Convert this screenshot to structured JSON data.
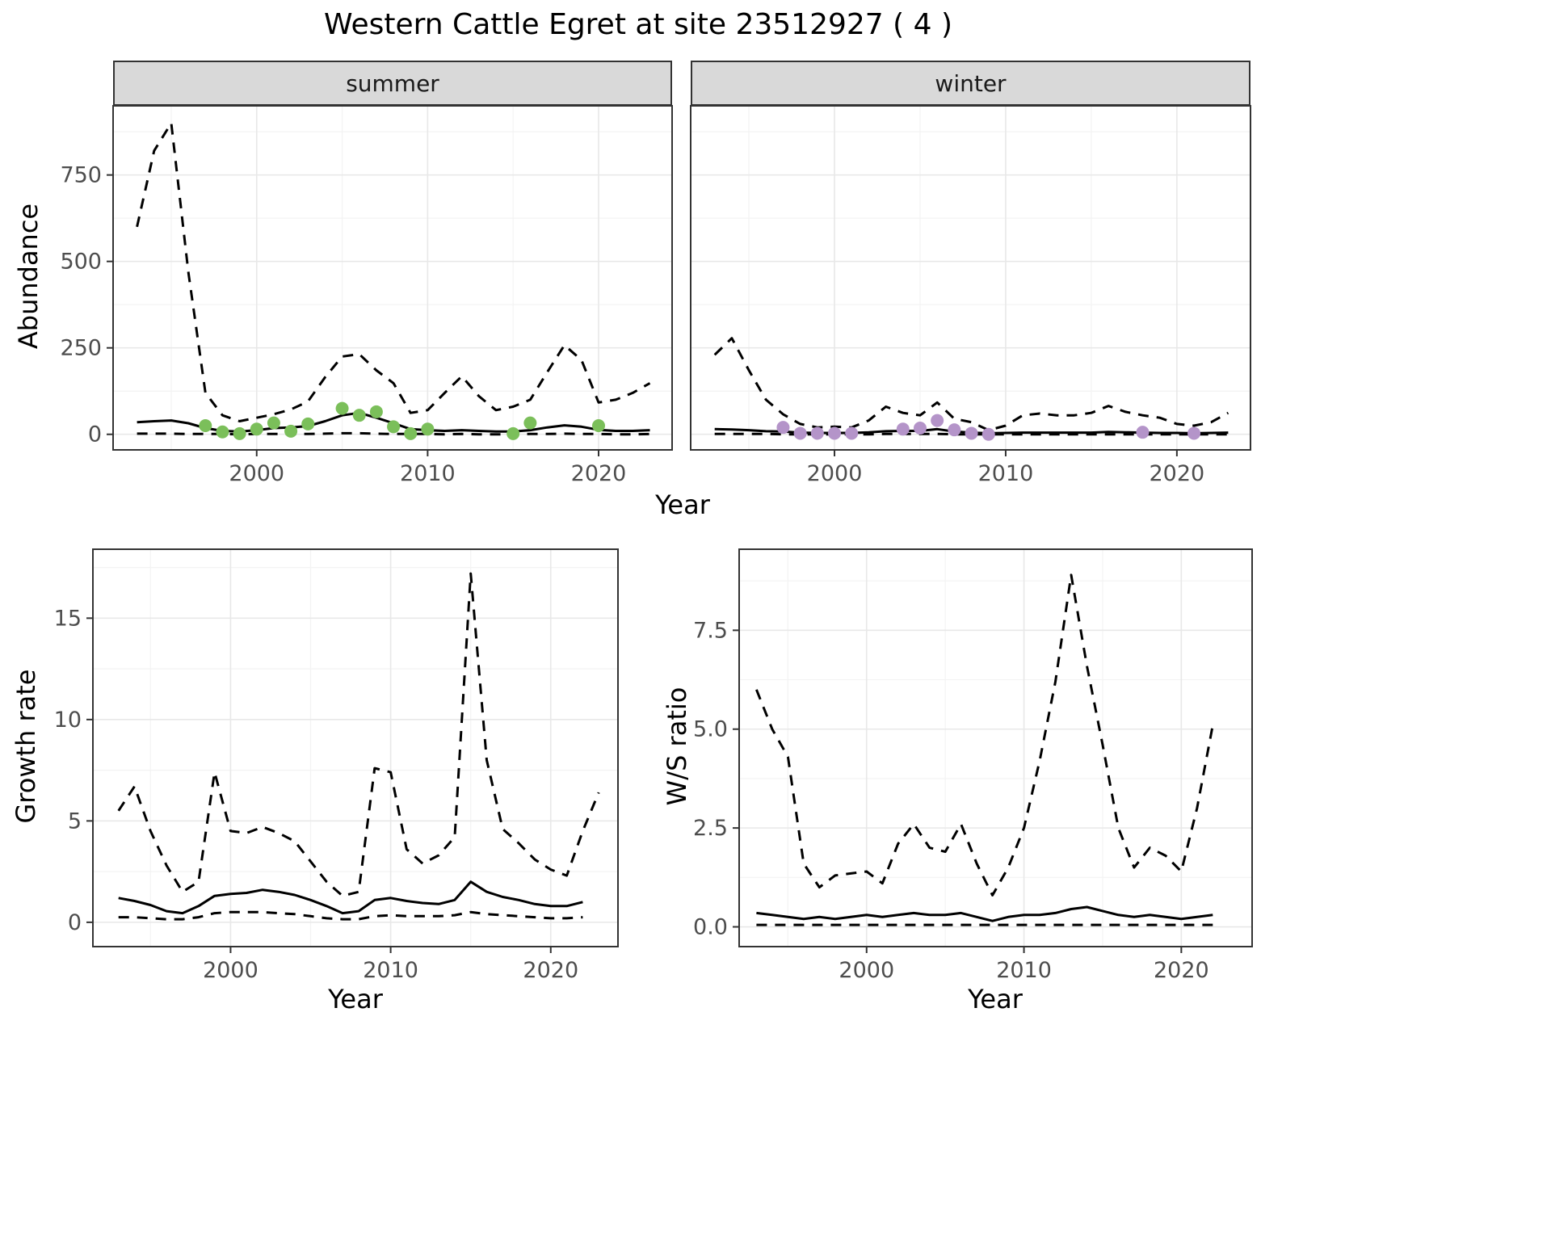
{
  "title": "Western Cattle Egret at site 23512927 ( 4 )",
  "theme": {
    "background": "#ffffff",
    "panel_border": "#333333",
    "strip_bg": "#d9d9d9",
    "grid_major": "#e8e8e8",
    "grid_minor": "#f3f3f3",
    "tick_color": "#333333",
    "tick_label_color": "#4d4d4d",
    "line_color": "#000000",
    "summer_point_color": "#7bbf5a",
    "winter_point_color": "#b494c9"
  },
  "chart_data": [
    {
      "id": "abundance",
      "type": "line",
      "xlabel": "Year",
      "ylabel": "Abundance",
      "xlim": [
        1991.6,
        2024.3
      ],
      "ylim": [
        -45,
        950
      ],
      "xticks": [
        2000,
        2010,
        2020
      ],
      "yticks": [
        0,
        250,
        500,
        750
      ],
      "grid": true,
      "legend": "none",
      "x": [
        1993,
        1994,
        1995,
        1996,
        1997,
        1998,
        1999,
        2000,
        2001,
        2002,
        2003,
        2004,
        2005,
        2006,
        2007,
        2008,
        2009,
        2010,
        2011,
        2012,
        2013,
        2014,
        2015,
        2016,
        2017,
        2018,
        2019,
        2020,
        2021,
        2022,
        2023
      ],
      "facets": [
        {
          "label": "summer",
          "point_color": "#7bbf5a",
          "series": [
            {
              "name": "upper_ci",
              "style": "dashed",
              "y": [
                600,
                820,
                900,
                470,
                120,
                55,
                38,
                48,
                58,
                72,
                95,
                165,
                225,
                232,
                185,
                148,
                62,
                70,
                120,
                168,
                110,
                70,
                80,
                100,
                180,
                258,
                215,
                92,
                100,
                120,
                148
              ]
            },
            {
              "name": "estimate",
              "style": "solid",
              "y": [
                35,
                38,
                40,
                32,
                18,
                10,
                8,
                12,
                18,
                20,
                24,
                38,
                55,
                62,
                48,
                32,
                15,
                12,
                10,
                12,
                10,
                8,
                8,
                12,
                20,
                26,
                22,
                13,
                10,
                10,
                12
              ]
            },
            {
              "name": "lower_ci",
              "style": "dashed",
              "y": [
                2,
                2,
                2,
                1,
                1,
                1,
                0,
                1,
                1,
                1,
                1,
                2,
                3,
                3,
                2,
                1,
                1,
                1,
                0,
                1,
                0,
                0,
                0,
                1,
                1,
                2,
                1,
                1,
                0,
                0,
                1
              ]
            }
          ],
          "points": {
            "x": [
              1997,
              1998,
              1999,
              2000,
              2001,
              2002,
              2003,
              2005,
              2006,
              2007,
              2008,
              2009,
              2010,
              2015,
              2016,
              2020
            ],
            "y": [
              25,
              7,
              2,
              15,
              33,
              9,
              30,
              75,
              55,
              65,
              22,
              2,
              15,
              2,
              33,
              25
            ]
          }
        },
        {
          "label": "winter",
          "point_color": "#b494c9",
          "series": [
            {
              "name": "upper_ci",
              "style": "dashed",
              "y": [
                230,
                278,
                185,
                100,
                58,
                30,
                20,
                22,
                20,
                40,
                80,
                62,
                55,
                92,
                45,
                35,
                12,
                25,
                55,
                60,
                55,
                55,
                62,
                82,
                65,
                55,
                48,
                30,
                25,
                35,
                62
              ]
            },
            {
              "name": "estimate",
              "style": "solid",
              "y": [
                15,
                14,
                12,
                9,
                8,
                5,
                4,
                4,
                4,
                6,
                9,
                10,
                10,
                15,
                8,
                5,
                3,
                4,
                5,
                5,
                5,
                5,
                5,
                7,
                6,
                5,
                4,
                4,
                3,
                4,
                5
              ]
            },
            {
              "name": "lower_ci",
              "style": "dashed",
              "y": [
                1,
                1,
                1,
                1,
                0,
                0,
                0,
                0,
                0,
                0,
                1,
                1,
                1,
                1,
                0,
                0,
                0,
                0,
                0,
                0,
                0,
                0,
                0,
                0,
                0,
                0,
                0,
                0,
                0,
                0,
                0
              ]
            }
          ],
          "points": {
            "x": [
              1997,
              1998,
              1999,
              2000,
              2001,
              2004,
              2005,
              2006,
              2007,
              2008,
              2009,
              2018,
              2021
            ],
            "y": [
              20,
              3,
              3,
              3,
              3,
              15,
              18,
              40,
              13,
              3,
              0,
              6,
              3
            ]
          }
        }
      ]
    },
    {
      "id": "growth_rate",
      "type": "line",
      "xlabel": "Year",
      "ylabel": "Growth rate",
      "xlim": [
        1991.4,
        2024.2
      ],
      "ylim": [
        -1.2,
        18.4
      ],
      "xticks": [
        2000,
        2010,
        2020
      ],
      "yticks": [
        0,
        5,
        10,
        15
      ],
      "grid": true,
      "legend": "none",
      "x": [
        1993,
        1994,
        1995,
        1996,
        1997,
        1998,
        1999,
        2000,
        2001,
        2002,
        2003,
        2004,
        2005,
        2006,
        2007,
        2008,
        2009,
        2010,
        2011,
        2012,
        2013,
        2014,
        2015,
        2016,
        2017,
        2018,
        2019,
        2020,
        2021,
        2022,
        2023
      ],
      "series": [
        {
          "name": "upper_ci",
          "style": "dashed",
          "y": [
            5.5,
            6.7,
            4.5,
            2.8,
            1.5,
            2.0,
            7.4,
            4.5,
            4.4,
            4.7,
            4.4,
            4.0,
            3.0,
            2.0,
            1.3,
            1.5,
            7.6,
            7.4,
            3.6,
            2.9,
            3.3,
            4.2,
            17.2,
            8.0,
            4.6,
            3.9,
            3.1,
            2.6,
            2.3,
            4.5,
            6.4
          ]
        },
        {
          "name": "estimate",
          "style": "solid",
          "x": [
            1993,
            1994,
            1995,
            1996,
            1997,
            1998,
            1999,
            2000,
            2001,
            2002,
            2003,
            2004,
            2005,
            2006,
            2007,
            2008,
            2009,
            2010,
            2011,
            2012,
            2013,
            2014,
            2015,
            2016,
            2017,
            2018,
            2019,
            2020,
            2021,
            2022
          ],
          "y": [
            1.2,
            1.05,
            0.85,
            0.55,
            0.45,
            0.8,
            1.3,
            1.4,
            1.45,
            1.6,
            1.5,
            1.35,
            1.1,
            0.8,
            0.45,
            0.55,
            1.1,
            1.2,
            1.05,
            0.95,
            0.9,
            1.1,
            2.0,
            1.5,
            1.25,
            1.1,
            0.9,
            0.8,
            0.8,
            1.0
          ]
        },
        {
          "name": "lower_ci",
          "style": "dashed",
          "x": [
            1993,
            1994,
            1995,
            1996,
            1997,
            1998,
            1999,
            2000,
            2001,
            2002,
            2003,
            2004,
            2005,
            2006,
            2007,
            2008,
            2009,
            2010,
            2011,
            2012,
            2013,
            2014,
            2015,
            2016,
            2017,
            2018,
            2019,
            2020,
            2021,
            2022
          ],
          "y": [
            0.25,
            0.25,
            0.2,
            0.15,
            0.15,
            0.25,
            0.45,
            0.5,
            0.5,
            0.5,
            0.45,
            0.4,
            0.3,
            0.2,
            0.15,
            0.15,
            0.3,
            0.35,
            0.3,
            0.3,
            0.3,
            0.35,
            0.5,
            0.4,
            0.35,
            0.3,
            0.25,
            0.2,
            0.2,
            0.25
          ]
        }
      ]
    },
    {
      "id": "ws_ratio",
      "type": "line",
      "xlabel": "Year",
      "ylabel": "W/S ratio",
      "xlim": [
        1991.9,
        2024.5
      ],
      "ylim": [
        -0.5,
        9.55
      ],
      "xticks": [
        2000,
        2010,
        2020
      ],
      "yticks": [
        0,
        2.5,
        5,
        7.5
      ],
      "ytick_labels": [
        "0.0",
        "2.5",
        "5.0",
        "7.5"
      ],
      "grid": true,
      "legend": "none",
      "x": [
        1993,
        1994,
        1995,
        1996,
        1997,
        1998,
        1999,
        2000,
        2001,
        2002,
        2003,
        2004,
        2005,
        2006,
        2007,
        2008,
        2009,
        2010,
        2011,
        2012,
        2013,
        2014,
        2015,
        2016,
        2017,
        2018,
        2019,
        2020,
        2021,
        2022
      ],
      "series": [
        {
          "name": "upper_ci",
          "style": "dashed",
          "y": [
            6.0,
            5.0,
            4.3,
            1.6,
            1.0,
            1.3,
            1.35,
            1.4,
            1.1,
            2.1,
            2.6,
            2.0,
            1.9,
            2.6,
            1.6,
            0.8,
            1.5,
            2.5,
            4.2,
            6.2,
            8.9,
            6.6,
            4.6,
            2.5,
            1.5,
            2.0,
            1.8,
            1.4,
            3.0,
            5.1
          ]
        },
        {
          "name": "estimate",
          "style": "solid",
          "y": [
            0.35,
            0.3,
            0.25,
            0.2,
            0.25,
            0.2,
            0.25,
            0.3,
            0.25,
            0.3,
            0.35,
            0.3,
            0.3,
            0.35,
            0.25,
            0.15,
            0.25,
            0.3,
            0.3,
            0.35,
            0.45,
            0.5,
            0.4,
            0.3,
            0.25,
            0.3,
            0.25,
            0.2,
            0.25,
            0.3
          ]
        },
        {
          "name": "lower_ci",
          "style": "dashed",
          "y": [
            0.05,
            0.05,
            0.05,
            0.05,
            0.05,
            0.05,
            0.05,
            0.05,
            0.05,
            0.05,
            0.05,
            0.05,
            0.05,
            0.05,
            0.05,
            0.05,
            0.05,
            0.05,
            0.05,
            0.05,
            0.05,
            0.05,
            0.05,
            0.05,
            0.05,
            0.05,
            0.05,
            0.05,
            0.05,
            0.05
          ]
        }
      ]
    }
  ]
}
